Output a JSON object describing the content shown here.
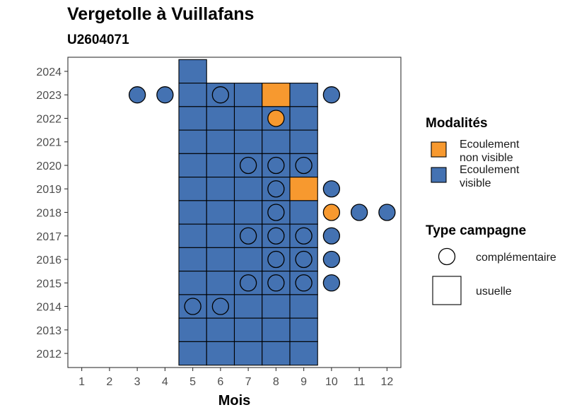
{
  "title": "Vergetolle à Vuillafans",
  "subtitle": "U2604071",
  "colors": {
    "non_visible": "#f7992f",
    "visible": "#4472b2",
    "outline": "#000000"
  },
  "legend": {
    "modalites_title": "Modalités",
    "modalites": [
      {
        "key": "non_visible",
        "line1": "Ecoulement",
        "line2": "non visible"
      },
      {
        "key": "visible",
        "line1": "Ecoulement",
        "line2": "visible"
      }
    ],
    "type_title": "Type campagne",
    "types": [
      {
        "shape": "circle",
        "label": "complémentaire"
      },
      {
        "shape": "square",
        "label": "usuelle"
      }
    ]
  },
  "chart_data": {
    "type": "heatmap",
    "xlabel": "Mois",
    "ylabel": "",
    "x_ticks": [
      1,
      2,
      3,
      4,
      5,
      6,
      7,
      8,
      9,
      10,
      11,
      12
    ],
    "y_ticks": [
      2012,
      2013,
      2014,
      2015,
      2016,
      2017,
      2018,
      2019,
      2020,
      2021,
      2022,
      2023,
      2024
    ],
    "xlim": [
      0.5,
      12.5
    ],
    "ylim": [
      2011.4,
      2024.6
    ],
    "usuelle": [
      {
        "year": 2024,
        "month": 5,
        "status": "visible"
      },
      {
        "year": 2023,
        "month": 5,
        "status": "visible"
      },
      {
        "year": 2023,
        "month": 6,
        "status": "visible"
      },
      {
        "year": 2023,
        "month": 7,
        "status": "visible"
      },
      {
        "year": 2023,
        "month": 8,
        "status": "non_visible"
      },
      {
        "year": 2023,
        "month": 9,
        "status": "visible"
      },
      {
        "year": 2022,
        "month": 5,
        "status": "visible"
      },
      {
        "year": 2022,
        "month": 6,
        "status": "visible"
      },
      {
        "year": 2022,
        "month": 7,
        "status": "visible"
      },
      {
        "year": 2022,
        "month": 8,
        "status": "visible"
      },
      {
        "year": 2022,
        "month": 9,
        "status": "visible"
      },
      {
        "year": 2021,
        "month": 5,
        "status": "visible"
      },
      {
        "year": 2021,
        "month": 6,
        "status": "visible"
      },
      {
        "year": 2021,
        "month": 7,
        "status": "visible"
      },
      {
        "year": 2021,
        "month": 8,
        "status": "visible"
      },
      {
        "year": 2021,
        "month": 9,
        "status": "visible"
      },
      {
        "year": 2020,
        "month": 5,
        "status": "visible"
      },
      {
        "year": 2020,
        "month": 6,
        "status": "visible"
      },
      {
        "year": 2020,
        "month": 7,
        "status": "visible"
      },
      {
        "year": 2020,
        "month": 8,
        "status": "visible"
      },
      {
        "year": 2020,
        "month": 9,
        "status": "visible"
      },
      {
        "year": 2019,
        "month": 5,
        "status": "visible"
      },
      {
        "year": 2019,
        "month": 6,
        "status": "visible"
      },
      {
        "year": 2019,
        "month": 7,
        "status": "visible"
      },
      {
        "year": 2019,
        "month": 8,
        "status": "visible"
      },
      {
        "year": 2019,
        "month": 9,
        "status": "non_visible"
      },
      {
        "year": 2018,
        "month": 5,
        "status": "visible"
      },
      {
        "year": 2018,
        "month": 6,
        "status": "visible"
      },
      {
        "year": 2018,
        "month": 7,
        "status": "visible"
      },
      {
        "year": 2018,
        "month": 8,
        "status": "visible"
      },
      {
        "year": 2018,
        "month": 9,
        "status": "visible"
      },
      {
        "year": 2017,
        "month": 5,
        "status": "visible"
      },
      {
        "year": 2017,
        "month": 6,
        "status": "visible"
      },
      {
        "year": 2017,
        "month": 7,
        "status": "visible"
      },
      {
        "year": 2017,
        "month": 8,
        "status": "visible"
      },
      {
        "year": 2017,
        "month": 9,
        "status": "visible"
      },
      {
        "year": 2016,
        "month": 5,
        "status": "visible"
      },
      {
        "year": 2016,
        "month": 6,
        "status": "visible"
      },
      {
        "year": 2016,
        "month": 7,
        "status": "visible"
      },
      {
        "year": 2016,
        "month": 8,
        "status": "visible"
      },
      {
        "year": 2016,
        "month": 9,
        "status": "visible"
      },
      {
        "year": 2015,
        "month": 5,
        "status": "visible"
      },
      {
        "year": 2015,
        "month": 6,
        "status": "visible"
      },
      {
        "year": 2015,
        "month": 7,
        "status": "visible"
      },
      {
        "year": 2015,
        "month": 8,
        "status": "visible"
      },
      {
        "year": 2015,
        "month": 9,
        "status": "visible"
      },
      {
        "year": 2014,
        "month": 5,
        "status": "visible"
      },
      {
        "year": 2014,
        "month": 6,
        "status": "visible"
      },
      {
        "year": 2014,
        "month": 7,
        "status": "visible"
      },
      {
        "year": 2014,
        "month": 8,
        "status": "visible"
      },
      {
        "year": 2014,
        "month": 9,
        "status": "visible"
      },
      {
        "year": 2013,
        "month": 5,
        "status": "visible"
      },
      {
        "year": 2013,
        "month": 6,
        "status": "visible"
      },
      {
        "year": 2013,
        "month": 7,
        "status": "visible"
      },
      {
        "year": 2013,
        "month": 8,
        "status": "visible"
      },
      {
        "year": 2013,
        "month": 9,
        "status": "visible"
      },
      {
        "year": 2012,
        "month": 5,
        "status": "visible"
      },
      {
        "year": 2012,
        "month": 6,
        "status": "visible"
      },
      {
        "year": 2012,
        "month": 7,
        "status": "visible"
      },
      {
        "year": 2012,
        "month": 8,
        "status": "visible"
      },
      {
        "year": 2012,
        "month": 9,
        "status": "visible"
      }
    ],
    "complementaire": [
      {
        "year": 2023,
        "month": 3,
        "status": "visible"
      },
      {
        "year": 2023,
        "month": 4,
        "status": "visible"
      },
      {
        "year": 2023,
        "month": 6,
        "status": "visible"
      },
      {
        "year": 2023,
        "month": 10,
        "status": "visible"
      },
      {
        "year": 2022,
        "month": 8,
        "status": "non_visible"
      },
      {
        "year": 2020,
        "month": 7,
        "status": "visible"
      },
      {
        "year": 2020,
        "month": 8,
        "status": "visible"
      },
      {
        "year": 2020,
        "month": 9,
        "status": "visible"
      },
      {
        "year": 2019,
        "month": 8,
        "status": "visible"
      },
      {
        "year": 2019,
        "month": 10,
        "status": "visible"
      },
      {
        "year": 2018,
        "month": 8,
        "status": "visible"
      },
      {
        "year": 2018,
        "month": 10,
        "status": "non_visible"
      },
      {
        "year": 2018,
        "month": 11,
        "status": "visible"
      },
      {
        "year": 2018,
        "month": 12,
        "status": "visible"
      },
      {
        "year": 2017,
        "month": 7,
        "status": "visible"
      },
      {
        "year": 2017,
        "month": 8,
        "status": "visible"
      },
      {
        "year": 2017,
        "month": 9,
        "status": "visible"
      },
      {
        "year": 2017,
        "month": 10,
        "status": "visible"
      },
      {
        "year": 2016,
        "month": 8,
        "status": "visible"
      },
      {
        "year": 2016,
        "month": 9,
        "status": "visible"
      },
      {
        "year": 2016,
        "month": 10,
        "status": "visible"
      },
      {
        "year": 2015,
        "month": 7,
        "status": "visible"
      },
      {
        "year": 2015,
        "month": 8,
        "status": "visible"
      },
      {
        "year": 2015,
        "month": 9,
        "status": "visible"
      },
      {
        "year": 2015,
        "month": 10,
        "status": "visible"
      },
      {
        "year": 2014,
        "month": 5,
        "status": "visible"
      },
      {
        "year": 2014,
        "month": 6,
        "status": "visible"
      }
    ]
  }
}
